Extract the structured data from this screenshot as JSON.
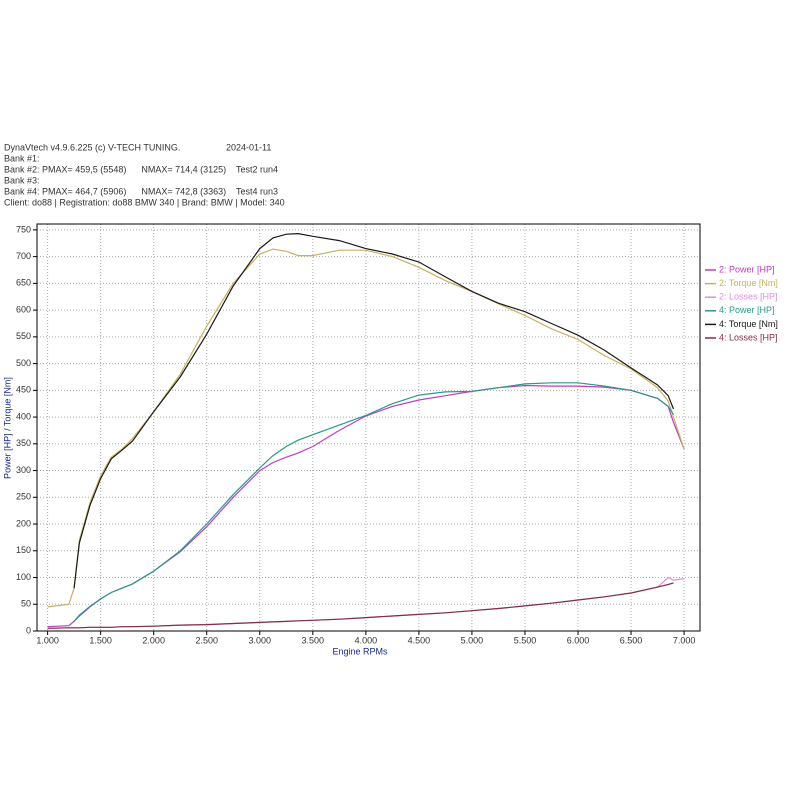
{
  "chart_data": {
    "type": "line",
    "title": "DynaVtech v4.9.6.225 (c) V-TECH TUNING.",
    "date": "2024-01-11",
    "annotations": [
      "Bank #1:",
      "Bank #2: PMAX= 459,5 (5548)      NMAX= 714,4 (3125)    Test2 run4",
      "Bank #3:",
      "Bank #4: PMAX= 464,7 (5906)      NMAX= 742,8 (3363)    Test4 run3",
      "Client: do88 | Registration: do88 BMW 340 | Brand: BMW | Model: 340"
    ],
    "x_label": "Engine RPMs",
    "y_label": "Power [HP] / Torque [Nm]",
    "x": [
      1000,
      1200,
      1250,
      1300,
      1400,
      1500,
      1600,
      1700,
      1800,
      2000,
      2250,
      2500,
      2750,
      3000,
      3125,
      3250,
      3363,
      3500,
      3750,
      4000,
      4250,
      4500,
      4750,
      5000,
      5250,
      5500,
      5750,
      6000,
      6250,
      6500,
      6750,
      6850,
      6900,
      7000
    ],
    "series": [
      {
        "name": "2: Power [HP]",
        "color": "#c03cc0",
        "values": [
          8,
          10,
          18,
          28,
          45,
          60,
          72,
          80,
          88,
          112,
          148,
          195,
          250,
          300,
          315,
          325,
          333,
          345,
          375,
          402,
          420,
          432,
          440,
          448,
          455,
          459,
          458,
          458,
          456,
          450,
          435,
          420,
          390,
          340
        ]
      },
      {
        "name": "2: Torque [Nm]",
        "color": "#c8b060",
        "values": [
          45,
          50,
          80,
          170,
          240,
          290,
          325,
          340,
          360,
          410,
          480,
          570,
          650,
          705,
          714,
          710,
          702,
          702,
          712,
          712,
          700,
          680,
          655,
          635,
          612,
          590,
          565,
          545,
          515,
          490,
          455,
          430,
          400,
          340
        ]
      },
      {
        "name": "2: Losses [HP]",
        "color": "#e08ee0",
        "values": [
          5,
          6,
          6,
          6,
          7,
          7,
          7,
          8,
          8,
          9,
          11,
          12,
          14,
          16,
          17,
          18,
          19,
          20,
          22,
          25,
          28,
          31,
          34,
          38,
          42,
          47,
          52,
          58,
          64,
          71,
          82,
          100,
          95,
          98
        ]
      },
      {
        "name": "4: Power [HP]",
        "color": "#2a9a8a",
        "values": [
          null,
          null,
          18,
          30,
          46,
          60,
          72,
          80,
          88,
          112,
          150,
          200,
          255,
          305,
          328,
          345,
          357,
          367,
          385,
          403,
          425,
          441,
          447,
          448,
          455,
          462,
          464,
          464,
          458,
          450,
          435,
          420,
          405,
          null
        ]
      },
      {
        "name": "4: Torque [Nm]",
        "color": "#1a1a1a",
        "values": [
          null,
          null,
          80,
          165,
          235,
          285,
          322,
          338,
          355,
          410,
          475,
          555,
          645,
          715,
          735,
          742,
          743,
          738,
          730,
          715,
          705,
          690,
          662,
          635,
          613,
          597,
          575,
          553,
          525,
          492,
          460,
          440,
          415,
          null
        ]
      },
      {
        "name": "4: Losses [HP]",
        "color": "#803040",
        "values": [
          5,
          6,
          6,
          6,
          7,
          7,
          7,
          8,
          8,
          9,
          11,
          12,
          14,
          16,
          17,
          18,
          19,
          20,
          22,
          25,
          28,
          31,
          34,
          38,
          42,
          47,
          52,
          58,
          64,
          71,
          82,
          87,
          90,
          null
        ]
      }
    ],
    "xlim": [
      900,
      7150
    ],
    "ylim": [
      0,
      761
    ],
    "xticks": [
      {
        "value": 1000,
        "label": "1.000"
      },
      {
        "value": 1500,
        "label": "1.500"
      },
      {
        "value": 2000,
        "label": "2.000"
      },
      {
        "value": 2500,
        "label": "2.500"
      },
      {
        "value": 3000,
        "label": "3.000"
      },
      {
        "value": 3500,
        "label": "3.500"
      },
      {
        "value": 4000,
        "label": "4.000"
      },
      {
        "value": 4500,
        "label": "4.500"
      },
      {
        "value": 5000,
        "label": "5.000"
      },
      {
        "value": 5500,
        "label": "5.500"
      },
      {
        "value": 6000,
        "label": "6.000"
      },
      {
        "value": 6500,
        "label": "6.500"
      },
      {
        "value": 7000,
        "label": "7.000"
      }
    ],
    "yticks": [
      0,
      50,
      100,
      150,
      200,
      250,
      300,
      350,
      400,
      450,
      500,
      550,
      600,
      650,
      700,
      750
    ],
    "grid": true
  }
}
